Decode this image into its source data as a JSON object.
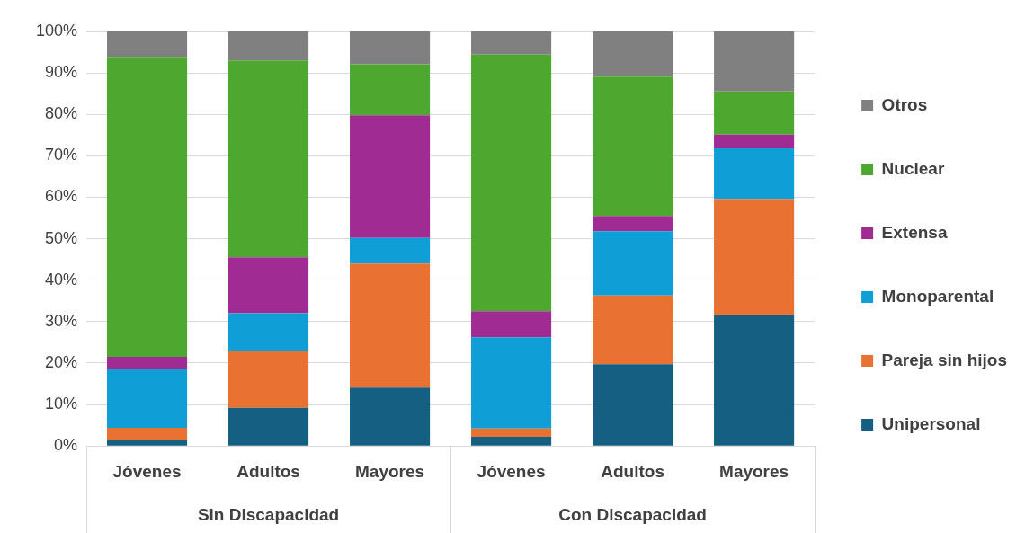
{
  "chart_data": {
    "type": "bar",
    "stacked": true,
    "categories": [
      "Jóvenes",
      "Adultos",
      "Mayores",
      "Jóvenes",
      "Adultos",
      "Mayores"
    ],
    "series": [
      {
        "name": "Unipersonal",
        "color": "#155f82",
        "values": [
          1.5,
          9.2,
          14.1,
          2.2,
          19.7,
          31.6
        ]
      },
      {
        "name": "Pareja sin hijos",
        "color": "#e97132",
        "values": [
          2.9,
          13.8,
          29.9,
          2.0,
          16.6,
          28.0
        ]
      },
      {
        "name": "Monoparental",
        "color": "#0f9ed5",
        "values": [
          14.1,
          9.0,
          6.2,
          22.0,
          15.5,
          12.2
        ]
      },
      {
        "name": "Extensa",
        "color": "#a02b93",
        "values": [
          3.0,
          13.5,
          29.6,
          6.3,
          3.7,
          3.3
        ]
      },
      {
        "name": "Nuclear",
        "color": "#4ea72e",
        "values": [
          72.4,
          47.5,
          12.3,
          61.9,
          33.6,
          10.4
        ]
      },
      {
        "name": "Otros",
        "color": "#808080",
        "values": [
          6.1,
          7.0,
          7.9,
          5.6,
          10.9,
          14.5
        ]
      }
    ],
    "ylim": [
      0,
      100
    ],
    "yticks": [
      {
        "value": 0,
        "label": "0%"
      },
      {
        "value": 10,
        "label": "10%"
      },
      {
        "value": 20,
        "label": "20%"
      },
      {
        "value": 30,
        "label": "30%"
      },
      {
        "value": 40,
        "label": "40%"
      },
      {
        "value": 50,
        "label": "50%"
      },
      {
        "value": 60,
        "label": "60%"
      },
      {
        "value": 70,
        "label": "70%"
      },
      {
        "value": 80,
        "label": "80%"
      },
      {
        "value": 90,
        "label": "90%"
      },
      {
        "value": 100,
        "label": "100%"
      }
    ],
    "grid": "y",
    "legend": "right",
    "annotations": [
      "Sin Discapacidad",
      "Con Discapacidad"
    ]
  }
}
